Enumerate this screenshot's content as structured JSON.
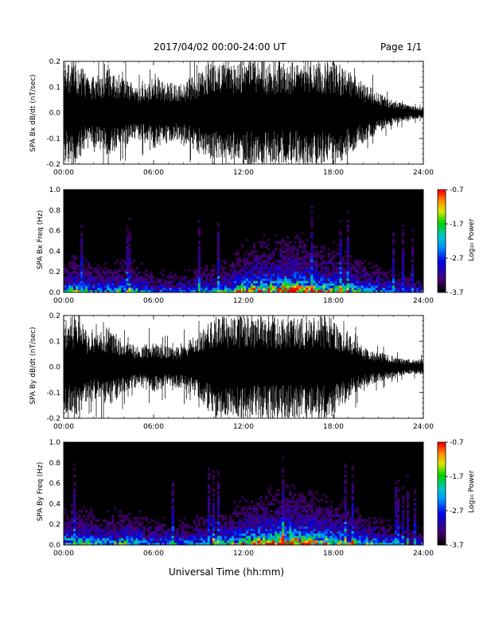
{
  "header": {
    "date_range": "2017/04/02  00:00-24:00 UT",
    "page": "Page 1/1"
  },
  "x_axis": {
    "label": "Universal Time (hh:mm)",
    "ticks": [
      "00:00",
      "06:00",
      "12:00",
      "18:00",
      "24:00"
    ]
  },
  "colorbar": {
    "label": "Log₁₀ Power",
    "ticks": [
      "-0.7",
      "-1.7",
      "-2.7",
      "-3.7"
    ]
  },
  "chart_data": [
    {
      "type": "line",
      "ylabel": "SPA Bx dB/dt (nT/sec)",
      "xlim": [
        0,
        24
      ],
      "ylim": [
        -0.2,
        0.2
      ],
      "yticks": [
        "0.2",
        "0.1",
        "0.0",
        "-0.1",
        "-0.2"
      ],
      "series": [
        {
          "x": [
            0,
            0.5,
            1,
            1.5,
            2,
            2.5,
            3,
            3.5,
            4,
            4.5,
            5,
            5.5,
            6,
            6.5,
            7,
            7.5,
            8,
            8.5,
            9,
            9.5,
            10,
            10.5,
            11,
            11.5,
            12,
            12.5,
            13,
            13.5,
            14,
            14.5,
            15,
            15.5,
            16,
            16.5,
            17,
            17.5,
            18,
            18.5,
            19,
            19.5,
            20,
            20.5,
            21,
            21.5,
            22,
            22.5,
            23,
            23.5,
            24
          ],
          "envelope": [
            0.2,
            0.2,
            0.2,
            0.15,
            0.14,
            0.16,
            0.18,
            0.15,
            0.13,
            0.12,
            0.11,
            0.12,
            0.14,
            0.13,
            0.12,
            0.11,
            0.12,
            0.14,
            0.16,
            0.19,
            0.2,
            0.2,
            0.2,
            0.2,
            0.2,
            0.2,
            0.2,
            0.2,
            0.2,
            0.2,
            0.2,
            0.2,
            0.2,
            0.2,
            0.2,
            0.2,
            0.2,
            0.19,
            0.17,
            0.14,
            0.12,
            0.1,
            0.08,
            0.06,
            0.05,
            0.04,
            0.03,
            0.025,
            0.02
          ]
        }
      ]
    },
    {
      "type": "heatmap",
      "ylabel": "SPA Bx Freq (Hz)",
      "xlim": [
        0,
        24
      ],
      "ylim": [
        0.0,
        1.0
      ],
      "yticks": [
        "1.0",
        "0.8",
        "0.6",
        "0.4",
        "0.2",
        "0.0"
      ],
      "zlim": [
        -3.7,
        -0.7
      ],
      "activity_x": [
        0,
        1,
        2,
        3,
        4,
        5,
        6,
        7,
        8,
        9,
        10,
        11,
        12,
        13,
        14,
        15,
        16,
        17,
        18,
        19,
        20,
        21,
        22,
        23,
        24
      ],
      "activity": [
        0.5,
        0.6,
        0.45,
        0.45,
        0.5,
        0.45,
        0.35,
        0.35,
        0.35,
        0.4,
        0.45,
        0.5,
        0.7,
        0.8,
        0.85,
        0.95,
        0.85,
        0.75,
        0.7,
        0.6,
        0.5,
        0.45,
        0.35,
        0.3,
        0.3
      ]
    },
    {
      "type": "line",
      "ylabel": "SPA By dB/dt (nT/sec)",
      "xlim": [
        0,
        24
      ],
      "ylim": [
        -0.2,
        0.2
      ],
      "yticks": [
        "0.2",
        "0.1",
        "0.0",
        "-0.1",
        "-0.2"
      ],
      "series": [
        {
          "x": [
            0,
            0.5,
            1,
            1.5,
            2,
            2.5,
            3,
            3.5,
            4,
            4.5,
            5,
            5.5,
            6,
            6.5,
            7,
            7.5,
            8,
            8.5,
            9,
            9.5,
            10,
            10.5,
            11,
            11.5,
            12,
            12.5,
            13,
            13.5,
            14,
            14.5,
            15,
            15.5,
            16,
            16.5,
            17,
            17.5,
            18,
            18.5,
            19,
            19.5,
            20,
            20.5,
            21,
            21.5,
            22,
            22.5,
            23,
            23.5,
            24
          ],
          "envelope": [
            0.2,
            0.2,
            0.2,
            0.14,
            0.12,
            0.14,
            0.16,
            0.13,
            0.1,
            0.09,
            0.08,
            0.09,
            0.1,
            0.09,
            0.08,
            0.08,
            0.09,
            0.11,
            0.13,
            0.16,
            0.2,
            0.2,
            0.2,
            0.2,
            0.2,
            0.2,
            0.2,
            0.2,
            0.2,
            0.2,
            0.2,
            0.2,
            0.2,
            0.2,
            0.2,
            0.2,
            0.2,
            0.16,
            0.13,
            0.1,
            0.08,
            0.07,
            0.06,
            0.05,
            0.04,
            0.035,
            0.03,
            0.03,
            0.03
          ]
        }
      ]
    },
    {
      "type": "heatmap",
      "ylabel": "SPA By Freq (Hz)",
      "xlim": [
        0,
        24
      ],
      "ylim": [
        0.0,
        1.0
      ],
      "yticks": [
        "1.0",
        "0.8",
        "0.6",
        "0.4",
        "0.2",
        "0.0"
      ],
      "zlim": [
        -3.7,
        -0.7
      ],
      "activity_x": [
        0,
        1,
        2,
        3,
        4,
        5,
        6,
        7,
        8,
        9,
        10,
        11,
        12,
        13,
        14,
        15,
        16,
        17,
        18,
        19,
        20,
        21,
        22,
        23,
        24
      ],
      "activity": [
        0.55,
        0.6,
        0.5,
        0.5,
        0.55,
        0.5,
        0.4,
        0.4,
        0.4,
        0.45,
        0.5,
        0.55,
        0.7,
        0.8,
        0.85,
        0.95,
        0.85,
        0.8,
        0.7,
        0.6,
        0.5,
        0.45,
        0.35,
        0.3,
        0.3
      ]
    }
  ]
}
